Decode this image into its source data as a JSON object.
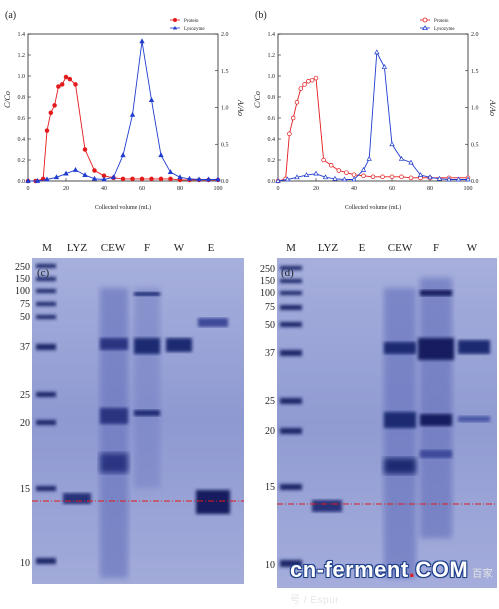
{
  "panels": {
    "a": {
      "label": "(a)",
      "ylabel_left": "C/Co",
      "ylabel_right": "A/Ao",
      "xlabel": "Collected volume (mL)",
      "legend": [
        "Protein",
        "Lysozyme"
      ]
    },
    "b": {
      "label": "(b)",
      "ylabel_left": "C/Co",
      "ylabel_right": "A/Ao",
      "xlabel": "Collected volume (mL)",
      "legend": [
        "Protein",
        "Lysozyme"
      ]
    },
    "c": {
      "label": "(c)",
      "lanes": [
        "M",
        "LYZ",
        "CEW",
        "F",
        "W",
        "E"
      ],
      "markers": [
        "250",
        "150",
        "100",
        "75",
        "50",
        "37",
        "25",
        "20",
        "15",
        "10"
      ]
    },
    "d": {
      "label": "(d)",
      "lanes": [
        "M",
        "LYZ",
        "E",
        "CEW",
        "F",
        "W"
      ],
      "markers": [
        "250",
        "150",
        "100",
        "75",
        "50",
        "37",
        "25",
        "20",
        "15",
        "10"
      ]
    }
  },
  "colors": {
    "protein": "#e31a1c",
    "lysozyme": "#1f3ccf",
    "gel_bg": "#8a95cf",
    "band": "#1d2769",
    "reference_line": "#e31a1c"
  },
  "watermark": {
    "text": "cn-ferment",
    "dot": ".",
    "suffix": "COM",
    "small": "百家号 / Espur"
  },
  "chart_data": [
    {
      "panel": "a",
      "type": "line",
      "xlabel": "Collected volume (mL)",
      "ylabel": "C/Co",
      "y2label": "A/Ao",
      "xlim": [
        0,
        100
      ],
      "ylim": [
        0,
        1.4
      ],
      "y2lim": [
        0,
        2.0
      ],
      "x_ticks": [
        0,
        20,
        40,
        60,
        80,
        100
      ],
      "y_ticks": [
        0.0,
        0.2,
        0.4,
        0.6,
        0.8,
        1.0,
        1.2,
        1.4
      ],
      "y2_ticks": [
        0.0,
        0.5,
        1.0,
        1.5,
        2.0
      ],
      "legend_position": "top-right",
      "series": [
        {
          "name": "Protein",
          "axis": "left",
          "marker": "filled-circle",
          "x": [
            0,
            4,
            8,
            10,
            12,
            14,
            16,
            18,
            20,
            22,
            25,
            30,
            35,
            40,
            45,
            50,
            55,
            60,
            65,
            70,
            75,
            80,
            85,
            90,
            95,
            100
          ],
          "y": [
            0.0,
            0.0,
            0.02,
            0.48,
            0.65,
            0.72,
            0.9,
            0.92,
            0.99,
            0.97,
            0.92,
            0.3,
            0.1,
            0.05,
            0.03,
            0.02,
            0.02,
            0.02,
            0.02,
            0.02,
            0.02,
            0.01,
            0.01,
            0.01,
            0.01,
            0.01
          ]
        },
        {
          "name": "Lysozyme",
          "axis": "right",
          "marker": "filled-triangle",
          "x": [
            0,
            5,
            10,
            15,
            20,
            25,
            30,
            35,
            40,
            45,
            50,
            55,
            60,
            65,
            70,
            75,
            80,
            85,
            90,
            95,
            100
          ],
          "y": [
            0.0,
            0.0,
            0.02,
            0.05,
            0.1,
            0.15,
            0.08,
            0.03,
            0.02,
            0.05,
            0.35,
            0.9,
            1.9,
            1.1,
            0.35,
            0.12,
            0.05,
            0.03,
            0.02,
            0.02,
            0.02
          ]
        }
      ]
    },
    {
      "panel": "b",
      "type": "line",
      "xlabel": "Collected volume (mL)",
      "ylabel": "C/Co",
      "y2label": "A/Ao",
      "xlim": [
        0,
        100
      ],
      "ylim": [
        0,
        1.4
      ],
      "y2lim": [
        0,
        2.0
      ],
      "x_ticks": [
        0,
        20,
        40,
        60,
        80,
        100
      ],
      "y_ticks": [
        0.0,
        0.2,
        0.4,
        0.6,
        0.8,
        1.0,
        1.2,
        1.4
      ],
      "y2_ticks": [
        0.0,
        0.5,
        1.0,
        1.5,
        2.0
      ],
      "legend_position": "top-right",
      "series": [
        {
          "name": "Protein",
          "axis": "left",
          "marker": "open-circle",
          "x": [
            0,
            4,
            6,
            8,
            10,
            12,
            14,
            16,
            18,
            20,
            24,
            28,
            32,
            36,
            40,
            45,
            50,
            55,
            60,
            65,
            70,
            75,
            80,
            90,
            100
          ],
          "y": [
            0.0,
            0.02,
            0.45,
            0.6,
            0.75,
            0.88,
            0.92,
            0.95,
            0.96,
            0.98,
            0.2,
            0.15,
            0.1,
            0.08,
            0.06,
            0.05,
            0.04,
            0.04,
            0.04,
            0.04,
            0.03,
            0.03,
            0.03,
            0.03,
            0.03
          ]
        },
        {
          "name": "Lysozyme",
          "axis": "right",
          "marker": "open-triangle",
          "x": [
            0,
            5,
            10,
            15,
            20,
            25,
            30,
            35,
            40,
            45,
            48,
            52,
            56,
            60,
            65,
            70,
            75,
            80,
            85,
            90,
            95,
            100
          ],
          "y": [
            0.0,
            0.02,
            0.05,
            0.08,
            0.1,
            0.05,
            0.03,
            0.02,
            0.02,
            0.15,
            0.3,
            1.75,
            1.55,
            0.5,
            0.3,
            0.25,
            0.08,
            0.05,
            0.03,
            0.02,
            0.02,
            0.02
          ]
        }
      ]
    }
  ]
}
